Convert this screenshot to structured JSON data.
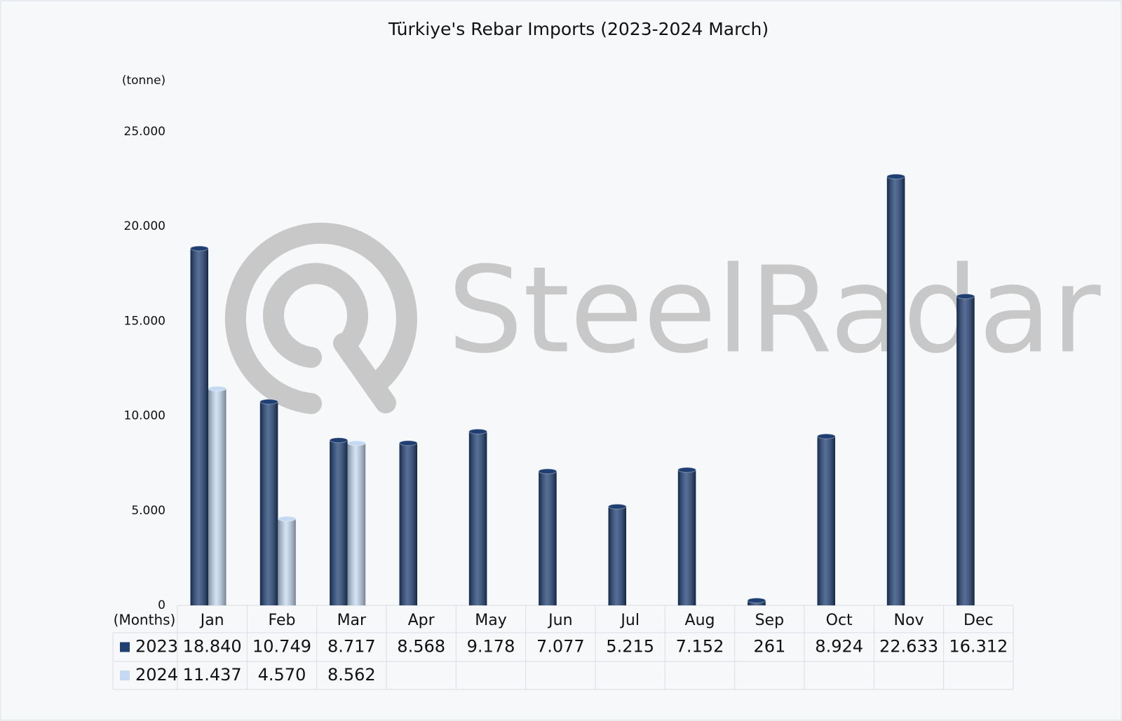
{
  "chart_data": {
    "type": "bar",
    "title": "Türkiye's Rebar Imports (2023-2024 March)",
    "y_label": "(tonne)",
    "x_label": "(Months)",
    "watermark": "SteelRadar",
    "categories": [
      "Jan",
      "Feb",
      "Mar",
      "Apr",
      "May",
      "Jun",
      "Jul",
      "Aug",
      "Sep",
      "Oct",
      "Nov",
      "Dec"
    ],
    "series": [
      {
        "name": "2023",
        "color": "#1f3f73",
        "values": [
          18840,
          10749,
          8717,
          8568,
          9178,
          7077,
          5215,
          7152,
          261,
          8924,
          22633,
          16312
        ],
        "value_labels": [
          "18.840",
          "10.749",
          "8.717",
          "8.568",
          "9.178",
          "7.077",
          "5.215",
          "7.152",
          "261",
          "8.924",
          "22.633",
          "16.312"
        ]
      },
      {
        "name": "2024",
        "color": "#c5daf2",
        "values": [
          11437,
          4570,
          8562,
          null,
          null,
          null,
          null,
          null,
          null,
          null,
          null,
          null
        ],
        "value_labels": [
          "11.437",
          "4.570",
          "8.562",
          null,
          null,
          null,
          null,
          null,
          null,
          null,
          null,
          null
        ]
      }
    ],
    "ylim": [
      0,
      25000
    ],
    "yticks": [
      0,
      {
        "value": 5000,
        "label": "5.000"
      },
      {
        "value": 10000,
        "label": "10.000"
      },
      {
        "value": 15000,
        "label": "15.000"
      },
      {
        "value": 20000,
        "label": "20.000"
      },
      {
        "value": 25000,
        "label": "25.000"
      }
    ],
    "grid": false
  }
}
